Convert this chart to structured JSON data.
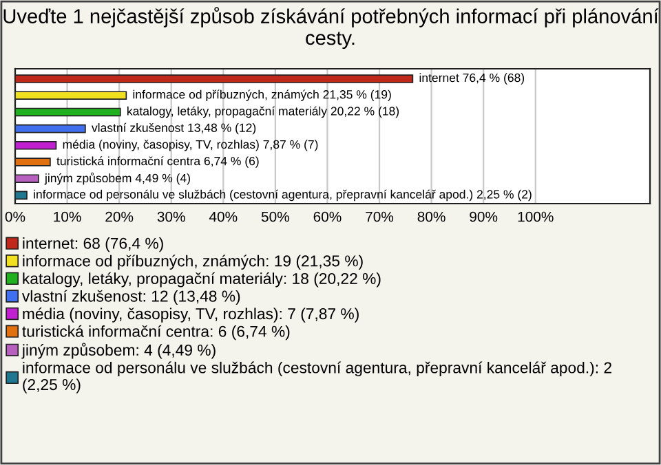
{
  "chart_data": {
    "type": "bar",
    "orientation": "horizontal",
    "title": "Uveďte 1 nejčastější způsob získávání potřebných informací při plánování cesty.",
    "categories": [
      null,
      null,
      null,
      null,
      null,
      null,
      null,
      null
    ],
    "series": [
      {
        "name": "internet: 68 (76,4 %)",
        "color": "#c0281c",
        "values": [
          76.4,
          null,
          null,
          null,
          null,
          null,
          null,
          null
        ],
        "value_labels": [
          "internet 76,4 % (68)",
          null,
          null,
          null,
          null,
          null,
          null,
          null
        ]
      },
      {
        "name": "informace od příbuzných, známých: 19 (21,35 %)",
        "color": "#f0e020",
        "values": [
          null,
          21.35,
          null,
          null,
          null,
          null,
          null,
          null
        ],
        "value_labels": [
          null,
          "informace od příbuzných, známých 21,35 % (19)",
          null,
          null,
          null,
          null,
          null,
          null
        ]
      },
      {
        "name": "katalogy, letáky, propagační materiály: 18 (20,22 %)",
        "color": "#20b020",
        "values": [
          null,
          null,
          20.22,
          null,
          null,
          null,
          null,
          null
        ],
        "value_labels": [
          null,
          null,
          "katalogy, letáky, propagační materiály 20,22 % (18)",
          null,
          null,
          null,
          null,
          null
        ]
      },
      {
        "name": "vlastní zkušenost: 12 (13,48 %)",
        "color": "#4070f0",
        "values": [
          null,
          null,
          null,
          13.48,
          null,
          null,
          null,
          null
        ],
        "value_labels": [
          null,
          null,
          null,
          "vlastní zkušenost 13,48 % (12)",
          null,
          null,
          null,
          null
        ]
      },
      {
        "name": "média (noviny, časopisy, TV, rozhlas): 7 (7,87 %)",
        "color": "#c020d0",
        "values": [
          null,
          null,
          null,
          null,
          7.87,
          null,
          null,
          null
        ],
        "value_labels": [
          null,
          null,
          null,
          null,
          "média (noviny, časopisy, TV, rozhlas) 7,87 % (7)",
          null,
          null,
          null
        ]
      },
      {
        "name": "turistická informační centra: 6 (6,74 %)",
        "color": "#e07010",
        "values": [
          null,
          null,
          null,
          null,
          null,
          6.74,
          null,
          null
        ],
        "value_labels": [
          null,
          null,
          null,
          null,
          null,
          "turistická informační centra 6,74 % (6)",
          null,
          null
        ]
      },
      {
        "name": "jiným způsobem: 4 (4,49 %)",
        "color": "#b860c0",
        "values": [
          null,
          null,
          null,
          null,
          null,
          null,
          4.49,
          null
        ],
        "value_labels": [
          null,
          null,
          null,
          null,
          null,
          null,
          "jiným způsobem 4,49 % (4)",
          null
        ]
      },
      {
        "name": "informace od personálu ve službách (cestovní agentura, přepravní kancelář apod.): 2 (2,25 %)",
        "color": "#207890",
        "values": [
          null,
          null,
          null,
          null,
          null,
          null,
          null,
          2.25
        ],
        "value_labels": [
          null,
          null,
          null,
          null,
          null,
          null,
          null,
          "informace od personálu ve službách (cestovní agentura, přepravní kancelář apod.) 2,25 % (2)"
        ]
      }
    ],
    "xlim": [
      0,
      122
    ],
    "xticks": [
      {
        "value": 0,
        "label": "0%"
      },
      {
        "value": 10,
        "label": "10%"
      },
      {
        "value": 20,
        "label": "20%"
      },
      {
        "value": 30,
        "label": "30%"
      },
      {
        "value": 40,
        "label": "40%"
      },
      {
        "value": 50,
        "label": "50%"
      },
      {
        "value": 60,
        "label": "60%"
      },
      {
        "value": 70,
        "label": "70%"
      },
      {
        "value": 80,
        "label": "80%"
      },
      {
        "value": 90,
        "label": "90%"
      },
      {
        "value": 100,
        "label": "100%"
      }
    ],
    "grid": "x",
    "legend": "bottom",
    "tick_labels": "x"
  }
}
